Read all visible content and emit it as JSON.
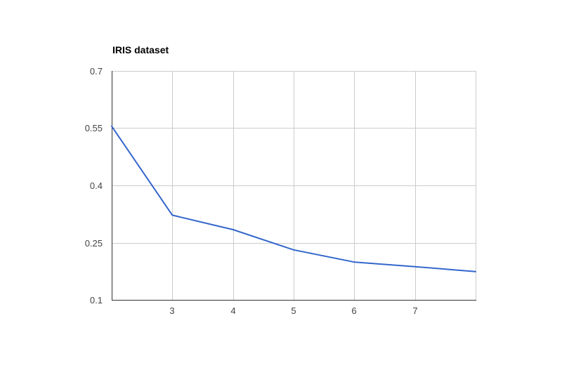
{
  "chart_data": {
    "type": "line",
    "title": "IRIS dataset",
    "xlabel": "",
    "ylabel": "",
    "x": [
      2,
      3,
      4,
      5,
      6,
      7,
      8
    ],
    "x_tick_values": [
      3,
      4,
      5,
      6,
      7
    ],
    "x_tick_labels": [
      "3",
      "4",
      "5",
      "6",
      "7"
    ],
    "xlim": [
      2,
      8
    ],
    "ylim": [
      0.1,
      0.7
    ],
    "y_tick_values": [
      0.1,
      0.25,
      0.4,
      0.55,
      0.7
    ],
    "y_tick_labels": [
      "0.1",
      "0.25",
      "0.4",
      "0.55",
      "0.7"
    ],
    "grid": true,
    "legend": "none",
    "series": [
      {
        "color": "#3366cc",
        "values": [
          0.555,
          0.322,
          0.284,
          0.231,
          0.199,
          0.187,
          0.174
        ]
      }
    ]
  }
}
